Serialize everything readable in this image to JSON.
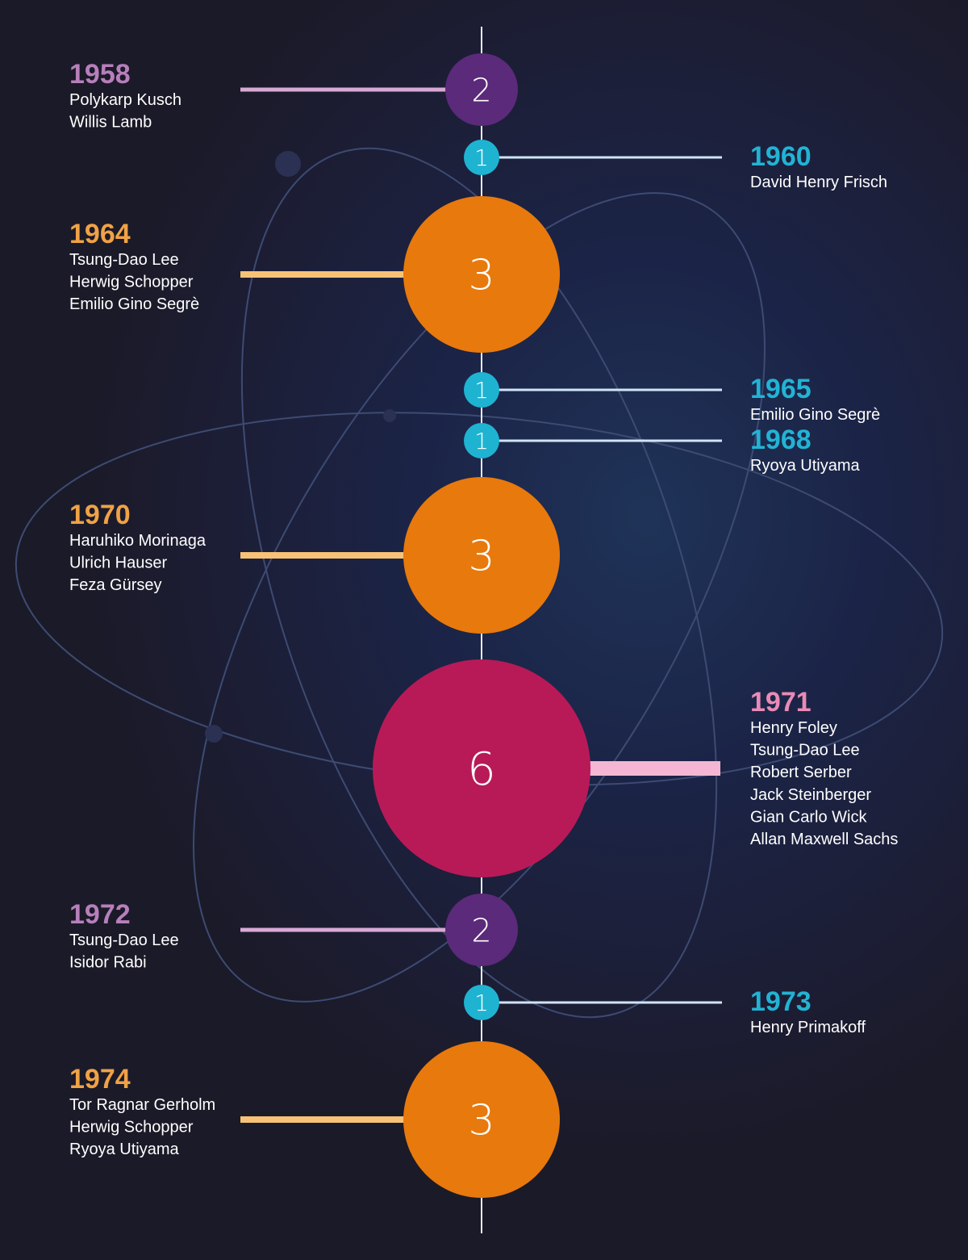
{
  "colors": {
    "purple": "#5b2a7a",
    "purple_bar": "#d8a9d6",
    "purple_text": "#b77fbb",
    "cyan": "#1fb3d2",
    "cyan_bar": "#cfe4f5",
    "cyan_text": "#22b3d4",
    "orange": "#e8790c",
    "orange_bar": "#f8c276",
    "orange_text": "#f0a245",
    "magenta": "#b81a57",
    "magenta_bar": "#f4b6d2",
    "magenta_text": "#e98bb6",
    "axis": "#e8e8f0",
    "orbit": "#3d4b73"
  },
  "chart_data": {
    "type": "timeline-bubble",
    "title": "",
    "x": [
      1958,
      1960,
      1964,
      1965,
      1968,
      1970,
      1971,
      1972,
      1973,
      1974
    ],
    "entries": [
      {
        "year": "1958",
        "count": 2,
        "side": "left",
        "group": "purple",
        "names": [
          "Polykarp Kusch",
          "Willis Lamb"
        ]
      },
      {
        "year": "1960",
        "count": 1,
        "side": "right",
        "group": "cyan",
        "names": [
          "David Henry Frisch"
        ]
      },
      {
        "year": "1964",
        "count": 3,
        "side": "left",
        "group": "orange",
        "names": [
          "Tsung-Dao Lee",
          "Herwig Schopper",
          "Emilio Gino Segrè"
        ]
      },
      {
        "year": "1965",
        "count": 1,
        "side": "right",
        "group": "cyan",
        "names": [
          "Emilio Gino Segrè"
        ]
      },
      {
        "year": "1968",
        "count": 1,
        "side": "right",
        "group": "cyan",
        "names": [
          "Ryoya Utiyama"
        ]
      },
      {
        "year": "1970",
        "count": 3,
        "side": "left",
        "group": "orange",
        "names": [
          "Haruhiko Morinaga",
          "Ulrich Hauser",
          "Feza Gürsey"
        ]
      },
      {
        "year": "1971",
        "count": 6,
        "side": "right",
        "group": "magenta",
        "names": [
          "Henry Foley",
          "Tsung-Dao Lee",
          "Robert Serber",
          "Jack Steinberger",
          "Gian Carlo Wick",
          "Allan Maxwell Sachs"
        ]
      },
      {
        "year": "1972",
        "count": 2,
        "side": "left",
        "group": "purple",
        "names": [
          "Tsung-Dao Lee",
          "Isidor Rabi"
        ]
      },
      {
        "year": "1973",
        "count": 1,
        "side": "right",
        "group": "cyan",
        "names": [
          "Henry Primakoff"
        ]
      },
      {
        "year": "1974",
        "count": 3,
        "side": "left",
        "group": "orange",
        "names": [
          "Tor Ragnar Gerholm",
          "Herwig Schopper",
          "Ryoya Utiyama"
        ]
      }
    ]
  }
}
